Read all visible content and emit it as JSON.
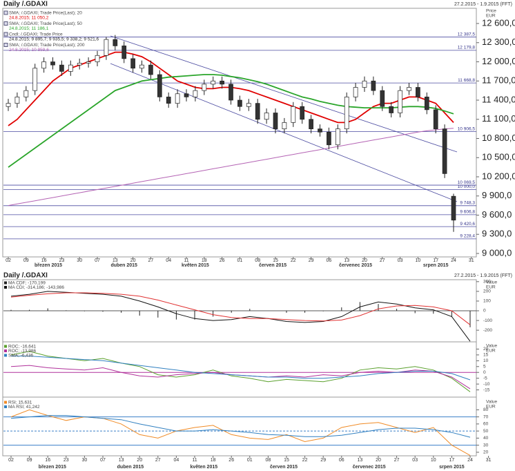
{
  "chart_data": [
    {
      "type": "candlestick",
      "title": "Daily /.GDAXI",
      "subtitle": "27.2.2015 - 1.9.2015 (FFT)",
      "ylabel_lines": [
        "Price",
        "EUR"
      ],
      "ylim": [
        8946,
        12838
      ],
      "yticks": [
        {
          "value": 9000,
          "label": "9 000,0"
        },
        {
          "value": 9300,
          "label": "9 300,0"
        },
        {
          "value": 9600,
          "label": "9 600,0"
        },
        {
          "value": 9900,
          "label": "9 900,0"
        },
        {
          "value": 10200,
          "label": "10 200,0"
        },
        {
          "value": 10500,
          "label": "10 500,0"
        },
        {
          "value": 10800,
          "label": "10 800,0"
        },
        {
          "value": 11100,
          "label": "11 100,0"
        },
        {
          "value": 11400,
          "label": "11 400,0"
        },
        {
          "value": 11700,
          "label": "11 700,0"
        },
        {
          "value": 12000,
          "label": "12 000,0"
        },
        {
          "value": 12300,
          "label": "12 300,0"
        },
        {
          "value": 12600,
          "label": "12 600,0"
        }
      ],
      "levels": [
        {
          "value": 12387.5,
          "label": "12 387,5"
        },
        {
          "value": 12179.8,
          "label": "12 179,8"
        },
        {
          "value": 11668.8,
          "label": "11 668,8"
        },
        {
          "value": 10906.5,
          "label": "10 906,5"
        },
        {
          "value": 10069.5,
          "label": "10 069,5"
        },
        {
          "value": 10000,
          "label": "10 000,0"
        },
        {
          "value": 9748.3,
          "label": "9 748,3"
        },
        {
          "value": 9606.8,
          "label": "9 606,8"
        },
        {
          "value": 9420.6,
          "label": "9 420,6"
        },
        {
          "value": 9228.4,
          "label": "9 228,4"
        }
      ],
      "xticks": [
        {
          "value": 0,
          "label": "02"
        },
        {
          "value": 2,
          "label": "09"
        },
        {
          "value": 4,
          "label": "16"
        },
        {
          "value": 6,
          "label": "23"
        },
        {
          "value": 8,
          "label": "30"
        },
        {
          "value": 10,
          "label": "07"
        },
        {
          "value": 12,
          "label": "13"
        },
        {
          "value": 14,
          "label": "20"
        },
        {
          "value": 16,
          "label": "27"
        },
        {
          "value": 18,
          "label": "04"
        },
        {
          "value": 20,
          "label": "11"
        },
        {
          "value": 22,
          "label": "18"
        },
        {
          "value": 24,
          "label": "26"
        },
        {
          "value": 26,
          "label": "01"
        },
        {
          "value": 28,
          "label": "08"
        },
        {
          "value": 30,
          "label": "15"
        },
        {
          "value": 32,
          "label": "22"
        },
        {
          "value": 34,
          "label": "29"
        },
        {
          "value": 36,
          "label": "06"
        },
        {
          "value": 38,
          "label": "13"
        },
        {
          "value": 40,
          "label": "20"
        },
        {
          "value": 42,
          "label": "27"
        },
        {
          "value": 44,
          "label": "03"
        },
        {
          "value": 46,
          "label": "10"
        },
        {
          "value": 48,
          "label": "17"
        },
        {
          "value": 50,
          "label": "24"
        },
        {
          "value": 52,
          "label": "31"
        }
      ],
      "month_labels": [
        {
          "value": 4.5,
          "label": "březen 2015"
        },
        {
          "value": 13,
          "label": "duben 2015"
        },
        {
          "value": 21,
          "label": "květen 2015"
        },
        {
          "value": 29.7,
          "label": "červen 2015"
        },
        {
          "value": 39,
          "label": "červenec 2015"
        },
        {
          "value": 48,
          "label": "srpen 2015"
        }
      ],
      "candle_name": "Cndl; /.GDAXI; Trade Price",
      "candle_label": "24.8.2015; 9 895,7; 9 935,5; 9 338,2; 9 521,6",
      "ohlc": [
        [
          11300,
          11420,
          11230,
          11350
        ],
        [
          11350,
          11520,
          11280,
          11450
        ],
        [
          11450,
          11620,
          11380,
          11550
        ],
        [
          11550,
          11970,
          11480,
          11900
        ],
        [
          11900,
          12070,
          11830,
          12000
        ],
        [
          12000,
          12070,
          11880,
          11950
        ],
        [
          11950,
          12020,
          11780,
          11850
        ],
        [
          11850,
          12020,
          11780,
          11950
        ],
        [
          11950,
          12050,
          11880,
          11980
        ],
        [
          11980,
          12070,
          11910,
          12000
        ],
        [
          12000,
          12170,
          11930,
          12100
        ],
        [
          12100,
          12390,
          12030,
          12350
        ],
        [
          12350,
          12420,
          12180,
          12250
        ],
        [
          12250,
          12320,
          11980,
          12050
        ],
        [
          12050,
          12120,
          11830,
          11900
        ],
        [
          11900,
          12020,
          11830,
          11950
        ],
        [
          11950,
          12020,
          11730,
          11800
        ],
        [
          11800,
          11870,
          11380,
          11450
        ],
        [
          11450,
          11520,
          11280,
          11350
        ],
        [
          11350,
          11570,
          11280,
          11500
        ],
        [
          11500,
          11570,
          11380,
          11450
        ],
        [
          11450,
          11620,
          11380,
          11550
        ],
        [
          11550,
          11720,
          11480,
          11650
        ],
        [
          11650,
          11770,
          11580,
          11700
        ],
        [
          11700,
          11770,
          11580,
          11650
        ],
        [
          11650,
          11720,
          11330,
          11400
        ],
        [
          11400,
          11470,
          11230,
          11300
        ],
        [
          11300,
          11420,
          11230,
          11350
        ],
        [
          11350,
          11420,
          11030,
          11100
        ],
        [
          11100,
          11270,
          11030,
          11200
        ],
        [
          11200,
          11270,
          10880,
          10950
        ],
        [
          10950,
          11120,
          10880,
          11050
        ],
        [
          11050,
          11370,
          10980,
          11300
        ],
        [
          11300,
          11370,
          11030,
          11100
        ],
        [
          11100,
          11170,
          10880,
          10950
        ],
        [
          10950,
          11020,
          10830,
          10900
        ],
        [
          10900,
          10970,
          10630,
          10700
        ],
        [
          10700,
          11020,
          10630,
          10950
        ],
        [
          10950,
          11520,
          10880,
          11450
        ],
        [
          11450,
          11670,
          11380,
          11600
        ],
        [
          11600,
          11770,
          11530,
          11700
        ],
        [
          11700,
          11770,
          11480,
          11550
        ],
        [
          11550,
          11620,
          11230,
          11300
        ],
        [
          11300,
          11370,
          11130,
          11200
        ],
        [
          11200,
          11620,
          11130,
          11550
        ],
        [
          11550,
          11670,
          11480,
          11600
        ],
        [
          11600,
          11670,
          11380,
          11450
        ],
        [
          11450,
          11520,
          11180,
          11250
        ],
        [
          11250,
          11320,
          10880,
          10950
        ],
        [
          10950,
          11020,
          10180,
          10250
        ],
        [
          9895.7,
          9935.5,
          9338.2,
          9521.6
        ]
      ],
      "series": [
        {
          "name": "SMA; /.GDAXI; Trade Price(Last); 20",
          "last_label": "24.8.2015; 11 050,2",
          "color": "#e00000",
          "values": [
            11000,
            11100,
            11250,
            11400,
            11550,
            11700,
            11800,
            11900,
            11950,
            12000,
            12050,
            12100,
            12150,
            12150,
            12120,
            12080,
            12000,
            11900,
            11800,
            11700,
            11650,
            11600,
            11580,
            11580,
            11600,
            11600,
            11580,
            11550,
            11500,
            11450,
            11400,
            11350,
            11300,
            11250,
            11200,
            11150,
            11100,
            11050,
            11050,
            11100,
            11200,
            11300,
            11350,
            11350,
            11400,
            11450,
            11450,
            11400,
            11350,
            11200,
            11050
          ]
        },
        {
          "name": "SMA; /.GDAXI; Trade Price(Last); 50",
          "last_label": "24.8.2015; 11 186,1",
          "color": "#2aa52a",
          "values": [
            10350,
            10450,
            10550,
            10650,
            10750,
            10850,
            10950,
            11050,
            11150,
            11250,
            11350,
            11450,
            11550,
            11600,
            11650,
            11700,
            11720,
            11740,
            11760,
            11770,
            11780,
            11790,
            11800,
            11800,
            11790,
            11770,
            11750,
            11720,
            11690,
            11650,
            11600,
            11550,
            11500,
            11450,
            11420,
            11380,
            11350,
            11320,
            11300,
            11290,
            11280,
            11280,
            11280,
            11280,
            11290,
            11300,
            11300,
            11290,
            11270,
            11230,
            11186
          ]
        },
        {
          "name": "SMA; /.GDAXI; Trade Price(Last); 200",
          "last_label": "24.8.2015; 10 959,6",
          "color": "#b463b4",
          "values": [
            9750,
            9775,
            9800,
            9825,
            9850,
            9875,
            9900,
            9925,
            9950,
            9975,
            10000,
            10025,
            10050,
            10075,
            10100,
            10125,
            10150,
            10175,
            10200,
            10225,
            10250,
            10275,
            10300,
            10325,
            10350,
            10375,
            10400,
            10425,
            10450,
            10475,
            10500,
            10525,
            10550,
            10575,
            10600,
            10625,
            10650,
            10675,
            10700,
            10725,
            10750,
            10775,
            10800,
            10825,
            10850,
            10875,
            10900,
            10920,
            10935,
            10950,
            10960
          ]
        }
      ]
    },
    {
      "type": "macd",
      "title": "Daily /.GDAXI",
      "subtitle": "27.2.2015 - 1.9.2015 (FFT)",
      "ylabel_lines": [
        "Value",
        "EUR"
      ],
      "ylim": [
        -320,
        320
      ],
      "yticks": [
        300,
        200,
        100,
        0,
        -100,
        -200
      ],
      "series": [
        {
          "legend": "MA CDF; -170,199",
          "color": "#222222",
          "values": [
            10,
            10,
            25,
            5,
            -5,
            -10,
            -20,
            -50,
            -70,
            -90,
            -90,
            -60,
            -20,
            20,
            0,
            -20,
            -20,
            -5,
            35,
            90,
            70,
            20,
            -25,
            -30,
            -60,
            -170
          ]
        },
        {
          "legend": "MA CDI; -314,186; -143,986",
          "color": "#111111",
          "values": [
            150,
            170,
            200,
            190,
            180,
            170,
            150,
            100,
            40,
            -30,
            -80,
            -100,
            -90,
            -60,
            -80,
            -110,
            -120,
            -110,
            -60,
            40,
            90,
            70,
            30,
            10,
            -60,
            -314
          ]
        },
        {
          "color": "#e03030",
          "values": [
            140,
            160,
            175,
            185,
            185,
            180,
            170,
            150,
            110,
            60,
            10,
            -40,
            -70,
            -80,
            -80,
            -90,
            -100,
            -105,
            -95,
            -50,
            20,
            50,
            55,
            40,
            0,
            -144
          ]
        }
      ]
    },
    {
      "type": "line",
      "ylabel_lines": [
        "Value",
        "EUR"
      ],
      "ylim": [
        -20,
        25
      ],
      "yticks": [
        20,
        15,
        10,
        5,
        0,
        -5,
        -10,
        -15
      ],
      "series": [
        {
          "legend": "ROC; -16,641",
          "color": "#5aa02c",
          "values": [
            15,
            18,
            14,
            12,
            10,
            12,
            8,
            5,
            -2,
            -4,
            -2,
            2,
            -3,
            -5,
            -8,
            -6,
            -7,
            -8,
            -5,
            2,
            4,
            3,
            5,
            2,
            -5,
            -16.6
          ]
        },
        {
          "legend": "ROC; -13,986",
          "color": "#b0309a",
          "values": [
            5,
            6,
            4,
            3,
            2,
            4,
            0,
            -3,
            -4,
            -2,
            -1,
            0,
            -2,
            -3,
            -4,
            -3,
            -4,
            -2,
            -3,
            0,
            1,
            0,
            2,
            1,
            -4,
            -14
          ]
        },
        {
          "legend": "SMA; -6,436",
          "color": "#2f7fc0",
          "values": [
            14,
            14,
            13,
            12,
            11,
            10,
            8,
            6,
            4,
            2,
            0,
            -1,
            -2,
            -3,
            -4,
            -4,
            -5,
            -5,
            -4,
            -3,
            -1,
            0,
            1,
            1,
            -1,
            -6.4
          ]
        }
      ]
    },
    {
      "type": "line",
      "ylabel_lines": [
        "Value",
        "EUR"
      ],
      "ylim": [
        15,
        95
      ],
      "yticks": [
        80,
        70,
        60,
        50,
        40,
        30,
        20
      ],
      "bands": [
        70,
        50,
        30
      ],
      "series": [
        {
          "legend": "RSI; 15,631",
          "color": "#f08a24",
          "values": [
            70,
            80,
            72,
            65,
            70,
            68,
            60,
            45,
            40,
            50,
            55,
            58,
            45,
            40,
            38,
            45,
            35,
            40,
            55,
            60,
            62,
            55,
            48,
            55,
            30,
            15.6
          ]
        },
        {
          "legend": "MA RSI; 41,242",
          "color": "#2f7fc0",
          "values": [
            68,
            70,
            72,
            72,
            70,
            68,
            66,
            60,
            55,
            50,
            50,
            52,
            50,
            48,
            45,
            44,
            42,
            42,
            44,
            48,
            52,
            54,
            54,
            52,
            48,
            41.2
          ]
        }
      ]
    }
  ]
}
